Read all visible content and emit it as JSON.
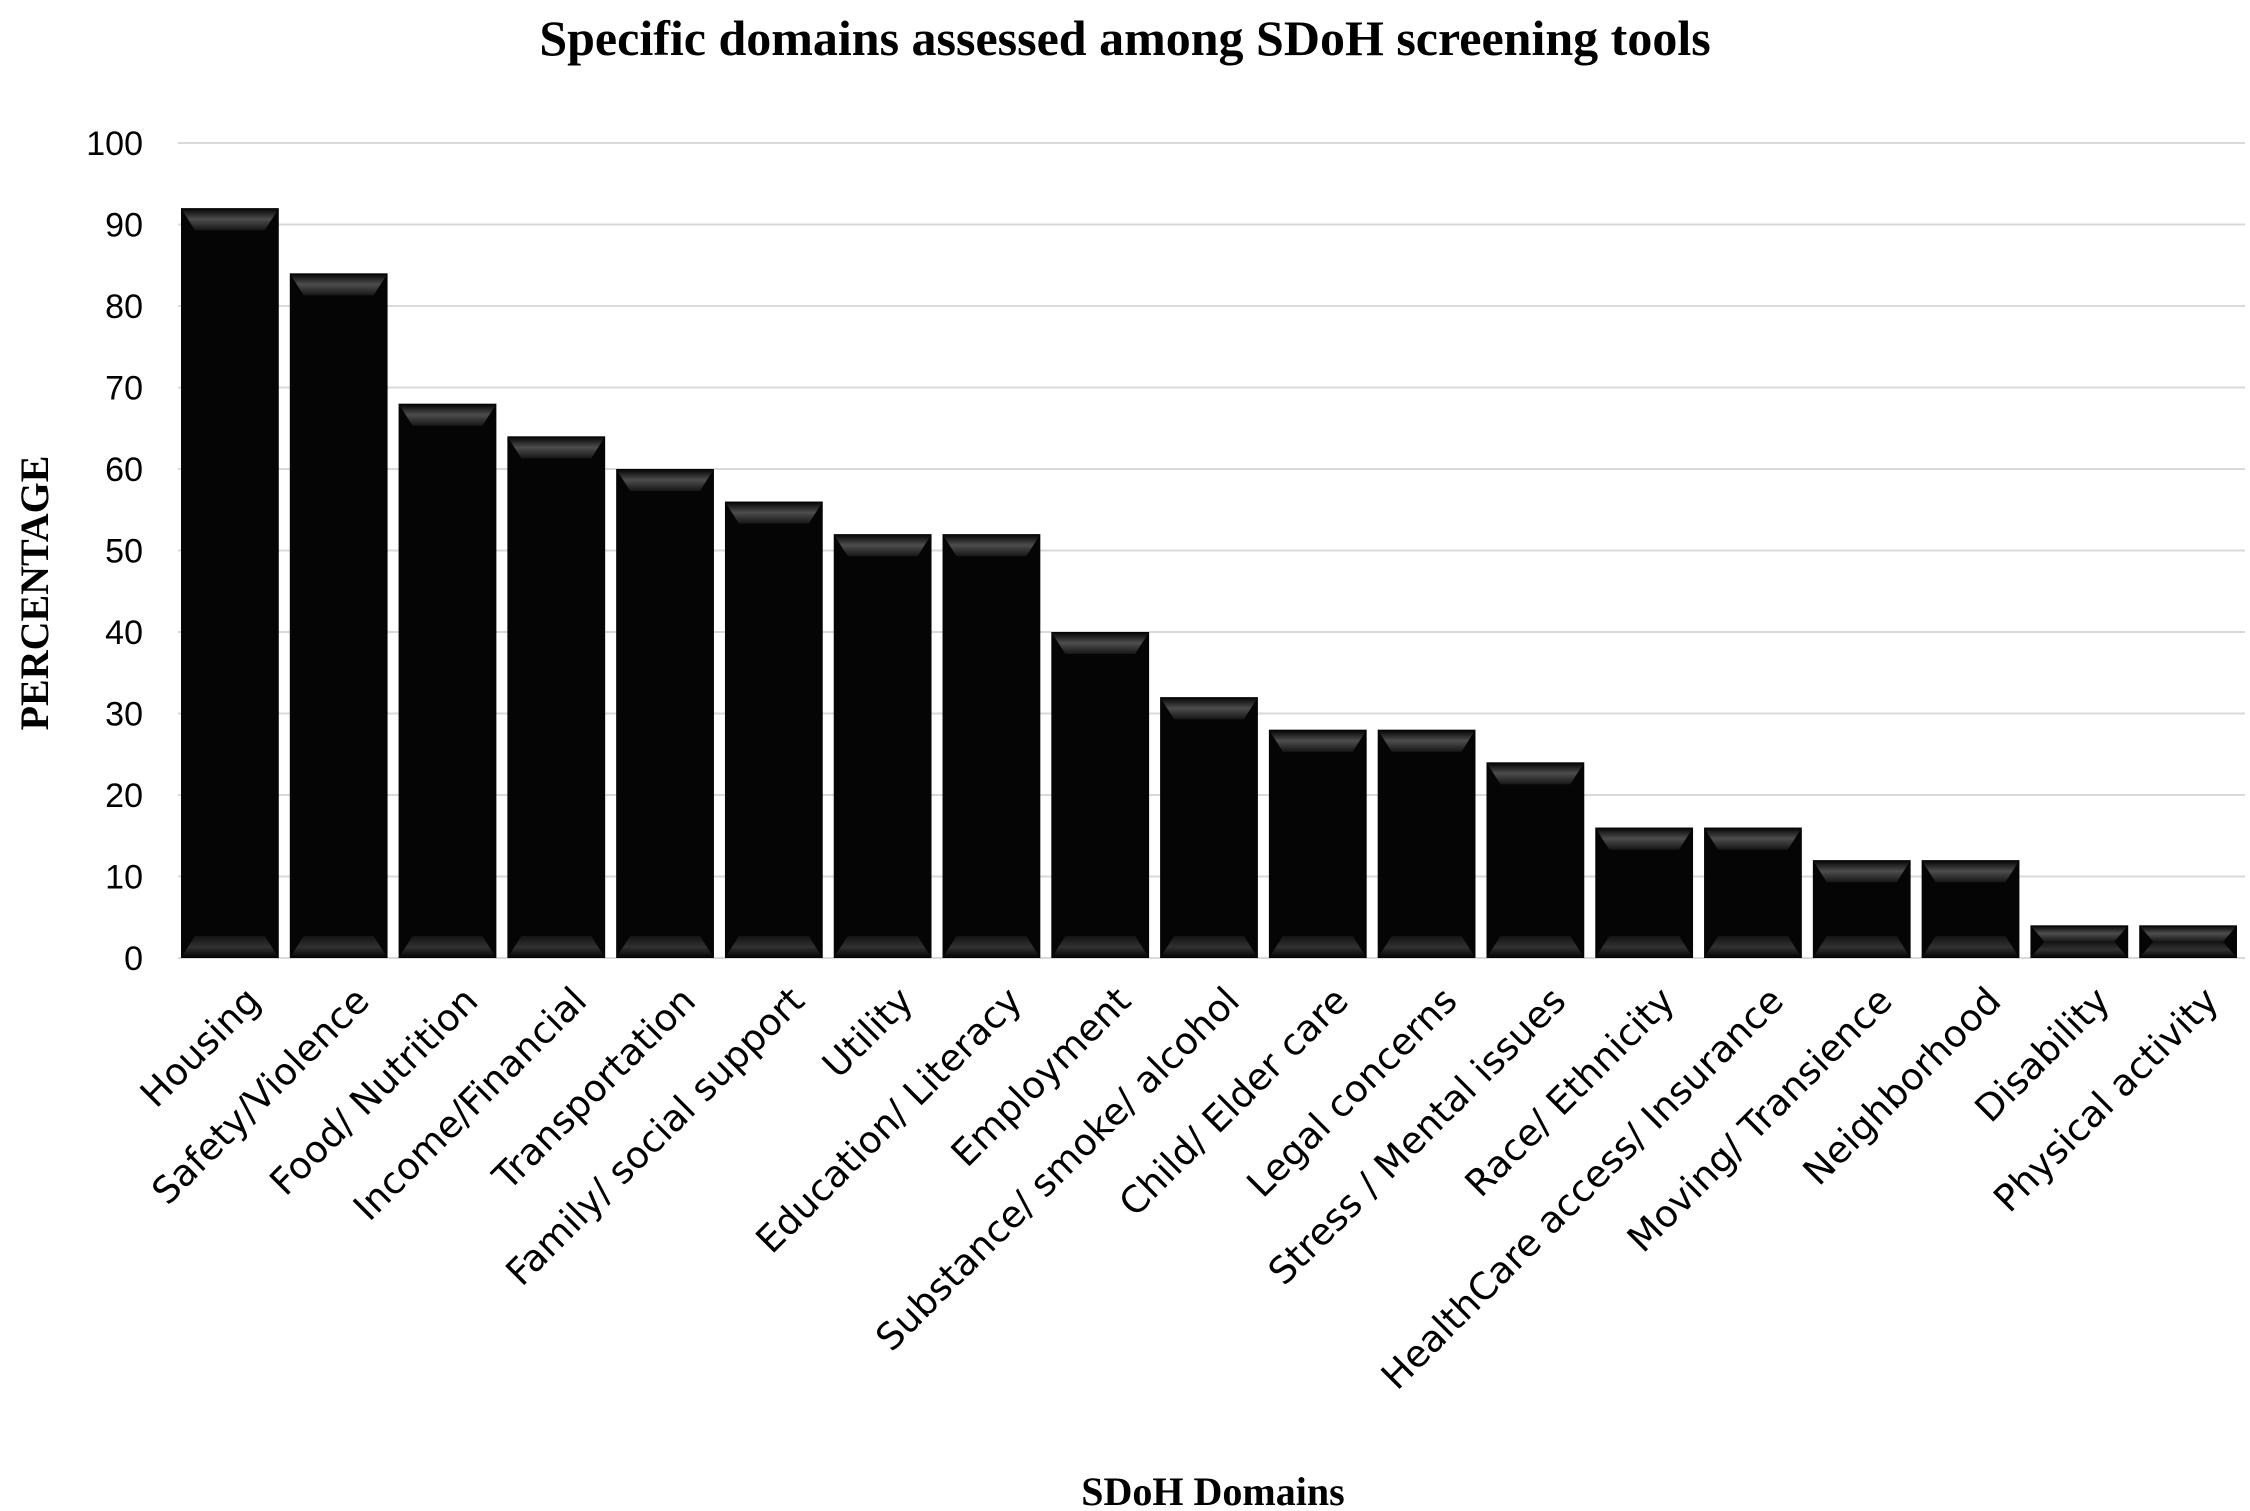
{
  "chart_data": {
    "type": "bar",
    "title": "Specific domains assessed among SDoH screening tools",
    "xlabel": "SDoH Domains",
    "ylabel": "PERCENTAGE",
    "ylim": [
      0,
      100
    ],
    "yticks": [
      0,
      10,
      20,
      30,
      40,
      50,
      60,
      70,
      80,
      90,
      100
    ],
    "grid": true,
    "legend": "none",
    "bar_color": "#050505",
    "categories": [
      "Housing",
      "Safety/Violence",
      "Food/ Nutrition",
      "Income/Financial",
      "Transportation",
      "Family/ social support",
      "Utility",
      "Education/ Literacy",
      "Employment",
      "Substance/ smoke/ alcohol",
      "Child/ Elder care",
      "Legal concerns",
      "Stress / Mental issues",
      "Race/ Ethnicity",
      "HealthCare access/ Insurance",
      "Moving/ Transience",
      "Neighborhood",
      "Disability",
      "Physical activity"
    ],
    "values": [
      92,
      84,
      68,
      64,
      60,
      56,
      52,
      52,
      40,
      32,
      28,
      28,
      24,
      16,
      16,
      12,
      12,
      4,
      4
    ]
  }
}
